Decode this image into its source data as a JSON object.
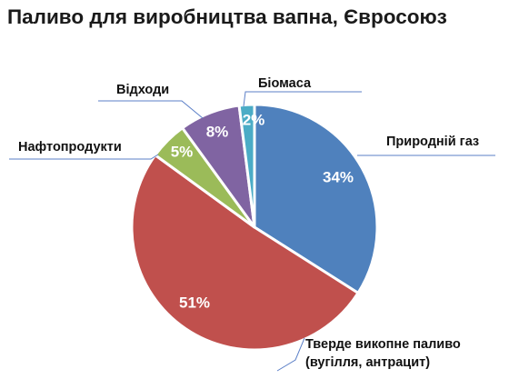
{
  "chart_data": {
    "type": "pie",
    "title": "Паливо для виробництва вапна, Євросоюз",
    "slices": [
      {
        "label": "Природній газ",
        "value": 34,
        "value_label": "34%",
        "color": "#4f81bd"
      },
      {
        "label": "Тверде викопне  паливо (вугілля, антрацит)",
        "label_lines": [
          "Тверде викопне  паливо",
          "(вугілля, антрацит)"
        ],
        "value": 51,
        "value_label": "51%",
        "color": "#c0504d"
      },
      {
        "label": "Нафтопродукти",
        "value": 5,
        "value_label": "5%",
        "color": "#9bbb59"
      },
      {
        "label": "Відходи",
        "value": 8,
        "value_label": "8%",
        "color": "#8064a2"
      },
      {
        "label": "Біомаса",
        "value": 2,
        "value_label": "2%",
        "color": "#4bacc6"
      }
    ],
    "start_angle": "12 o'clock",
    "direction": "clockwise",
    "legend": "none (outside labels with leader lines)"
  }
}
